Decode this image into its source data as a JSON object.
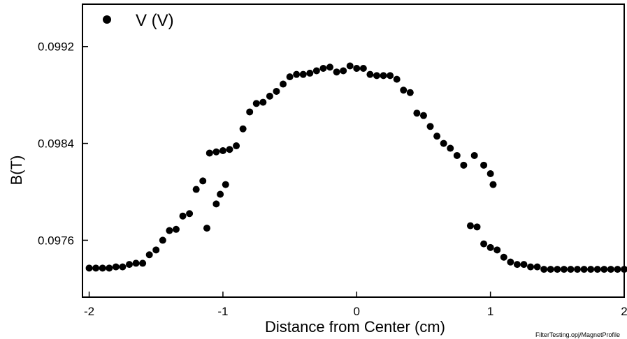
{
  "chart_data": {
    "type": "scatter",
    "xlabel": "Distance from Center (cm)",
    "ylabel": "B(T)",
    "xlim": [
      -2.05,
      2.0
    ],
    "ylim": [
      0.09713,
      0.09955
    ],
    "x_ticks": [
      -2,
      -1,
      0,
      1,
      2
    ],
    "x_tick_labels": [
      "-2",
      "-1",
      "0",
      "1",
      "2"
    ],
    "y_ticks": [
      0.0976,
      0.0984,
      0.0992
    ],
    "y_tick_labels": [
      "0.0976",
      "0.0984",
      "0.0992"
    ],
    "grid": false,
    "legend_position": "top-left",
    "footnote": "FilterTesting.opj/MagnetProfile",
    "series": [
      {
        "name": "V (V)",
        "color": "#000000",
        "marker": "circle",
        "points": [
          [
            -2.0,
            0.09737
          ],
          [
            -1.95,
            0.09737
          ],
          [
            -1.9,
            0.09737
          ],
          [
            -1.85,
            0.09737
          ],
          [
            -1.8,
            0.09738
          ],
          [
            -1.75,
            0.09738
          ],
          [
            -1.7,
            0.0974
          ],
          [
            -1.65,
            0.09741
          ],
          [
            -1.6,
            0.09741
          ],
          [
            -1.55,
            0.09748
          ],
          [
            -1.5,
            0.09752
          ],
          [
            -1.45,
            0.0976
          ],
          [
            -1.4,
            0.09768
          ],
          [
            -1.35,
            0.09769
          ],
          [
            -1.3,
            0.0978
          ],
          [
            -1.25,
            0.09782
          ],
          [
            -1.2,
            0.09802
          ],
          [
            -1.15,
            0.09809
          ],
          [
            -1.1,
            0.09832
          ],
          [
            -1.05,
            0.09833
          ],
          [
            -1.0,
            0.09834
          ],
          [
            -0.95,
            0.09835
          ],
          [
            -0.9,
            0.09838
          ],
          [
            -0.85,
            0.09852
          ],
          [
            -0.8,
            0.09866
          ],
          [
            -0.75,
            0.09873
          ],
          [
            -0.7,
            0.09874
          ],
          [
            -0.65,
            0.09879
          ],
          [
            -0.6,
            0.09883
          ],
          [
            -0.55,
            0.09889
          ],
          [
            -0.5,
            0.09895
          ],
          [
            -0.45,
            0.09897
          ],
          [
            -0.4,
            0.09897
          ],
          [
            -0.35,
            0.09898
          ],
          [
            -0.3,
            0.099
          ],
          [
            -0.25,
            0.09902
          ],
          [
            -0.2,
            0.09903
          ],
          [
            -0.05,
            0.09904
          ],
          [
            0.0,
            0.09902
          ],
          [
            0.05,
            0.09902
          ],
          [
            0.1,
            0.09897
          ],
          [
            0.15,
            0.09896
          ],
          [
            0.2,
            0.09896
          ],
          [
            0.25,
            0.09896
          ],
          [
            0.3,
            0.09893
          ],
          [
            0.35,
            0.09884
          ],
          [
            0.4,
            0.09882
          ],
          [
            0.45,
            0.09865
          ],
          [
            0.5,
            0.09863
          ],
          [
            0.55,
            0.09854
          ],
          [
            0.6,
            0.09846
          ],
          [
            0.65,
            0.0984
          ],
          [
            0.7,
            0.09836
          ],
          [
            0.75,
            0.0983
          ],
          [
            0.8,
            0.09822
          ],
          [
            0.85,
            0.09772
          ],
          [
            0.9,
            0.09771
          ],
          [
            0.95,
            0.09757
          ],
          [
            1.0,
            0.09754
          ],
          [
            1.05,
            0.09752
          ],
          [
            1.1,
            0.09746
          ],
          [
            1.15,
            0.09742
          ],
          [
            1.2,
            0.0974
          ],
          [
            1.25,
            0.0974
          ],
          [
            1.3,
            0.09738
          ],
          [
            1.35,
            0.09738
          ],
          [
            1.4,
            0.09736
          ],
          [
            1.45,
            0.09736
          ],
          [
            1.5,
            0.09736
          ],
          [
            1.55,
            0.09736
          ],
          [
            1.6,
            0.09736
          ],
          [
            1.65,
            0.09736
          ],
          [
            1.7,
            0.09736
          ],
          [
            1.75,
            0.09736
          ],
          [
            1.8,
            0.09736
          ],
          [
            1.85,
            0.09736
          ],
          [
            1.9,
            0.09736
          ],
          [
            1.95,
            0.09736
          ],
          [
            2.0,
            0.09736
          ],
          [
            -0.1,
            0.099
          ],
          [
            -0.15,
            0.09899
          ],
          [
            -1.12,
            0.0977
          ],
          [
            -1.05,
            0.0979
          ],
          [
            -1.02,
            0.09798
          ],
          [
            -0.98,
            0.09806
          ],
          [
            0.88,
            0.0983
          ],
          [
            0.95,
            0.09822
          ],
          [
            1.0,
            0.09815
          ],
          [
            1.02,
            0.09806
          ]
        ]
      }
    ]
  }
}
